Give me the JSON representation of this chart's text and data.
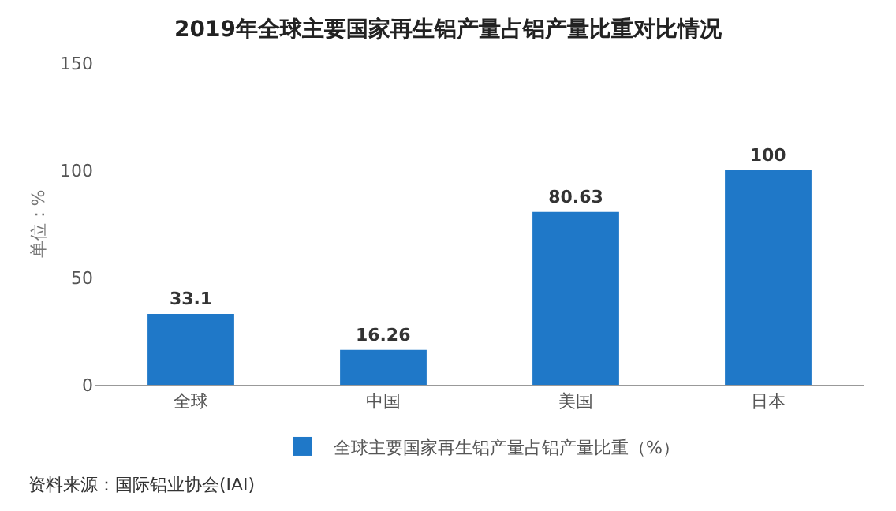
{
  "chart_data": {
    "type": "bar",
    "title": "2019年全球主要国家再生铝产量占铝产量比重对比情况",
    "ylabel": "单位：%",
    "categories": [
      "全球",
      "中国",
      "美国",
      "日本"
    ],
    "series": [
      {
        "name": "全球主要国家再生铝产量占铝产量比重（%）",
        "color": "#1f78c8",
        "values": [
          33.1,
          16.26,
          80.63,
          100
        ]
      }
    ],
    "ylim": [
      0,
      150
    ],
    "yticks": [
      0,
      50,
      100,
      150
    ],
    "grid": false,
    "legend": "bottom",
    "data_labels": true,
    "annotations": [
      "资料来源：国际铝业协会(IAI)"
    ]
  }
}
